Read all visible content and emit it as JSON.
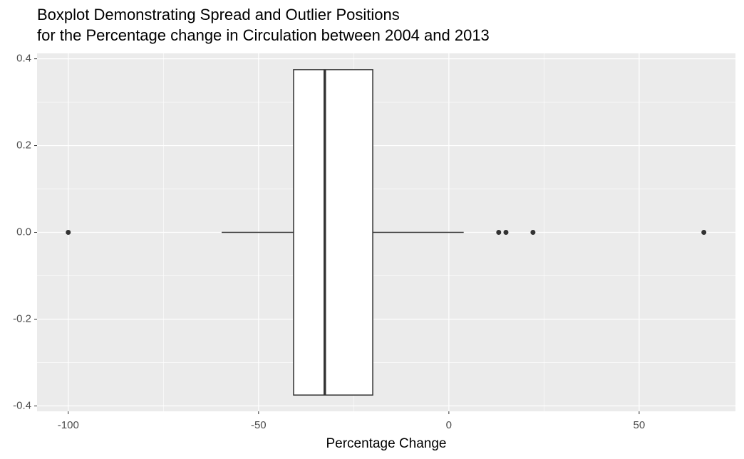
{
  "chart_data": {
    "type": "boxplot",
    "title": [
      "Boxplot Demonstrating Spread and Outlier Positions",
      "for the Percentage change in Circulation between 2004 and 2013"
    ],
    "xlabel": "Percentage Change",
    "xlim": [
      -108.2,
      75.3
    ],
    "xticks": [
      -100,
      -50,
      0,
      50
    ],
    "xminorticks": [
      -75,
      -25,
      25
    ],
    "ylim": [
      -0.4125,
      0.4125
    ],
    "yticks": [
      -0.4,
      -0.2,
      {
        "value": 0,
        "label": "0.0"
      },
      0.2,
      0.4
    ],
    "yminorticks": [
      -0.3,
      -0.1,
      0.1,
      0.3
    ],
    "grid": true,
    "color": "#ffffff",
    "edge_color": "#333333",
    "boxes": [
      {
        "y": 0,
        "width": 0.75,
        "whislo": -59.7,
        "q1": -40.8,
        "median": -32.6,
        "q3": -20.0,
        "whishi": 3.9,
        "outliers": [
          -100,
          13.1,
          15.0,
          22.1,
          67.0
        ]
      }
    ]
  }
}
